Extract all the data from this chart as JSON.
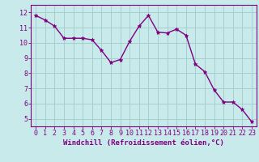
{
  "x": [
    0,
    1,
    2,
    3,
    4,
    5,
    6,
    7,
    8,
    9,
    10,
    11,
    12,
    13,
    14,
    15,
    16,
    17,
    18,
    19,
    20,
    21,
    22,
    23
  ],
  "y": [
    11.8,
    11.5,
    11.1,
    10.3,
    10.3,
    10.3,
    10.2,
    9.5,
    8.7,
    8.9,
    10.1,
    11.1,
    11.8,
    10.7,
    10.65,
    10.9,
    10.5,
    8.6,
    8.1,
    6.9,
    6.1,
    6.1,
    5.6,
    4.8
  ],
  "line_color": "#800080",
  "marker": "*",
  "marker_size": 3.5,
  "bg_color": "#c8eaea",
  "grid_color": "#a0cccc",
  "xlabel": "Windchill (Refroidissement éolien,°C)",
  "xlim": [
    -0.5,
    23.5
  ],
  "ylim": [
    4.5,
    12.5
  ],
  "yticks": [
    5,
    6,
    7,
    8,
    9,
    10,
    11,
    12
  ],
  "xticks": [
    0,
    1,
    2,
    3,
    4,
    5,
    6,
    7,
    8,
    9,
    10,
    11,
    12,
    13,
    14,
    15,
    16,
    17,
    18,
    19,
    20,
    21,
    22,
    23
  ],
  "tick_color": "#800080",
  "label_color": "#800080",
  "axis_color": "#800080",
  "xlabel_fontsize": 6.5,
  "tick_fontsize": 6,
  "line_width": 1.0
}
